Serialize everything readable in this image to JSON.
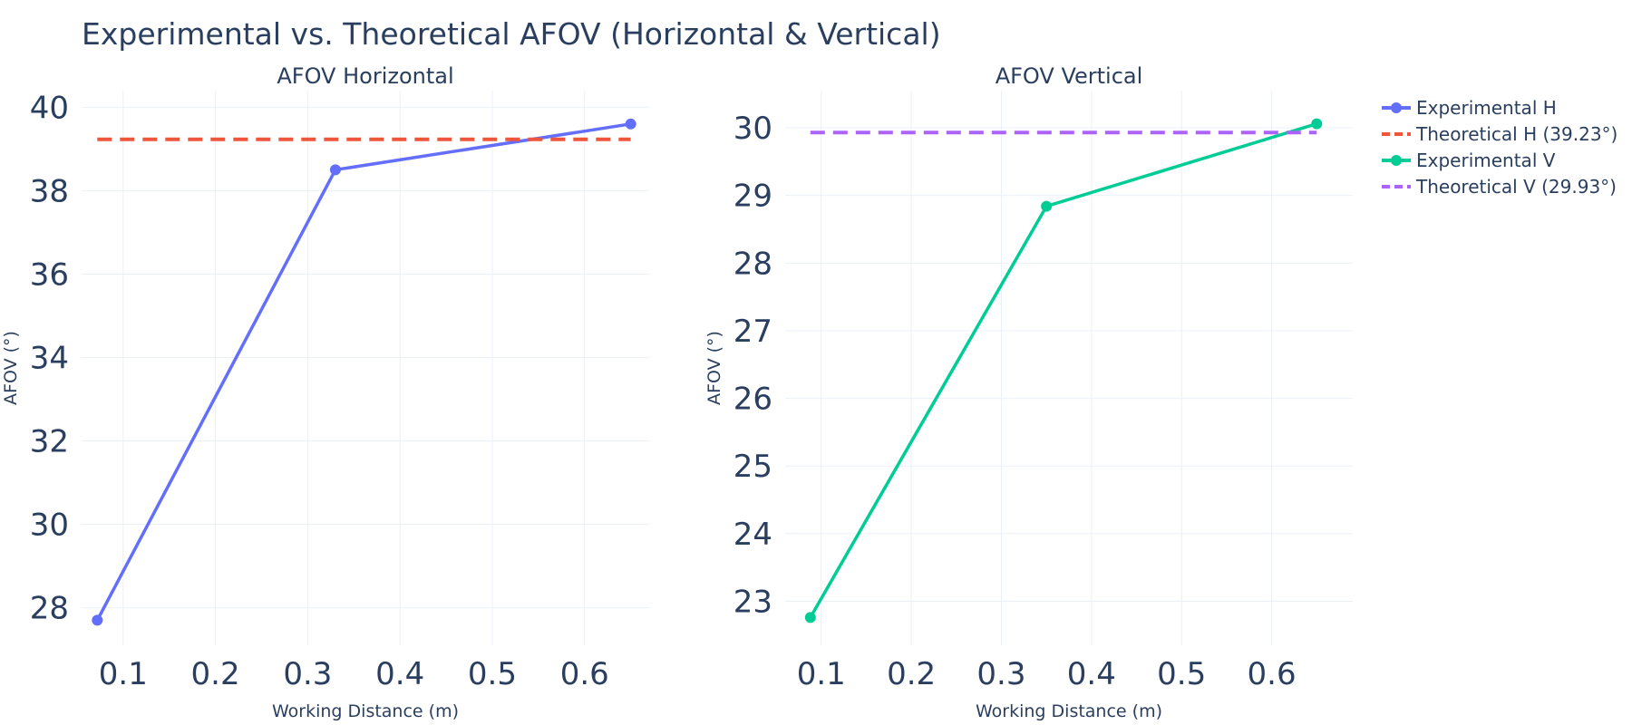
{
  "title": "Experimental vs. Theoretical AFOV (Horizontal & Vertical)",
  "chart_data": [
    {
      "type": "line",
      "title": "AFOV Horizontal",
      "xlabel": "Working Distance (m)",
      "ylabel": "AFOV (°)",
      "xlim": [
        0.055,
        0.67
      ],
      "ylim": [
        27.1,
        40.4
      ],
      "x_ticks": [
        0.1,
        0.2,
        0.3,
        0.4,
        0.5,
        0.6
      ],
      "y_ticks": [
        28,
        30,
        32,
        34,
        36,
        38,
        40
      ],
      "grid": true,
      "series": [
        {
          "name": "Experimental H",
          "x": [
            0.072,
            0.33,
            0.65
          ],
          "y": [
            27.7,
            38.5,
            39.6
          ],
          "color": "#636efa",
          "mode": "lines+markers"
        },
        {
          "name": "Theoretical H (39.23°)",
          "x": [
            0.072,
            0.65
          ],
          "y": [
            39.23,
            39.23
          ],
          "color": "#ef553b",
          "dash": "dash"
        }
      ]
    },
    {
      "type": "line",
      "title": "AFOV Vertical",
      "xlabel": "Working Distance (m)",
      "ylabel": "AFOV (°)",
      "xlim": [
        0.06,
        0.69
      ],
      "ylim": [
        22.35,
        30.55
      ],
      "x_ticks": [
        0.1,
        0.2,
        0.3,
        0.4,
        0.5,
        0.6
      ],
      "y_ticks": [
        23,
        24,
        25,
        26,
        27,
        28,
        29,
        30
      ],
      "grid": true,
      "series": [
        {
          "name": "Experimental V",
          "x": [
            0.088,
            0.35,
            0.65
          ],
          "y": [
            22.76,
            28.84,
            30.06
          ],
          "color": "#00cc96",
          "mode": "lines+markers"
        },
        {
          "name": "Theoretical V (29.93°)",
          "x": [
            0.088,
            0.65
          ],
          "y": [
            29.93,
            29.93
          ],
          "color": "#ab63fa",
          "dash": "dash"
        }
      ]
    }
  ],
  "legend": {
    "placement": "top-right",
    "items": [
      {
        "label": "Experimental H",
        "color": "#636efa",
        "style": "line-marker"
      },
      {
        "label": "Theoretical H (39.23°)",
        "color": "#ef553b",
        "style": "dash"
      },
      {
        "label": "Experimental V",
        "color": "#00cc96",
        "style": "line-marker"
      },
      {
        "label": "Theoretical V (29.93°)",
        "color": "#ab63fa",
        "style": "dash"
      }
    ]
  }
}
